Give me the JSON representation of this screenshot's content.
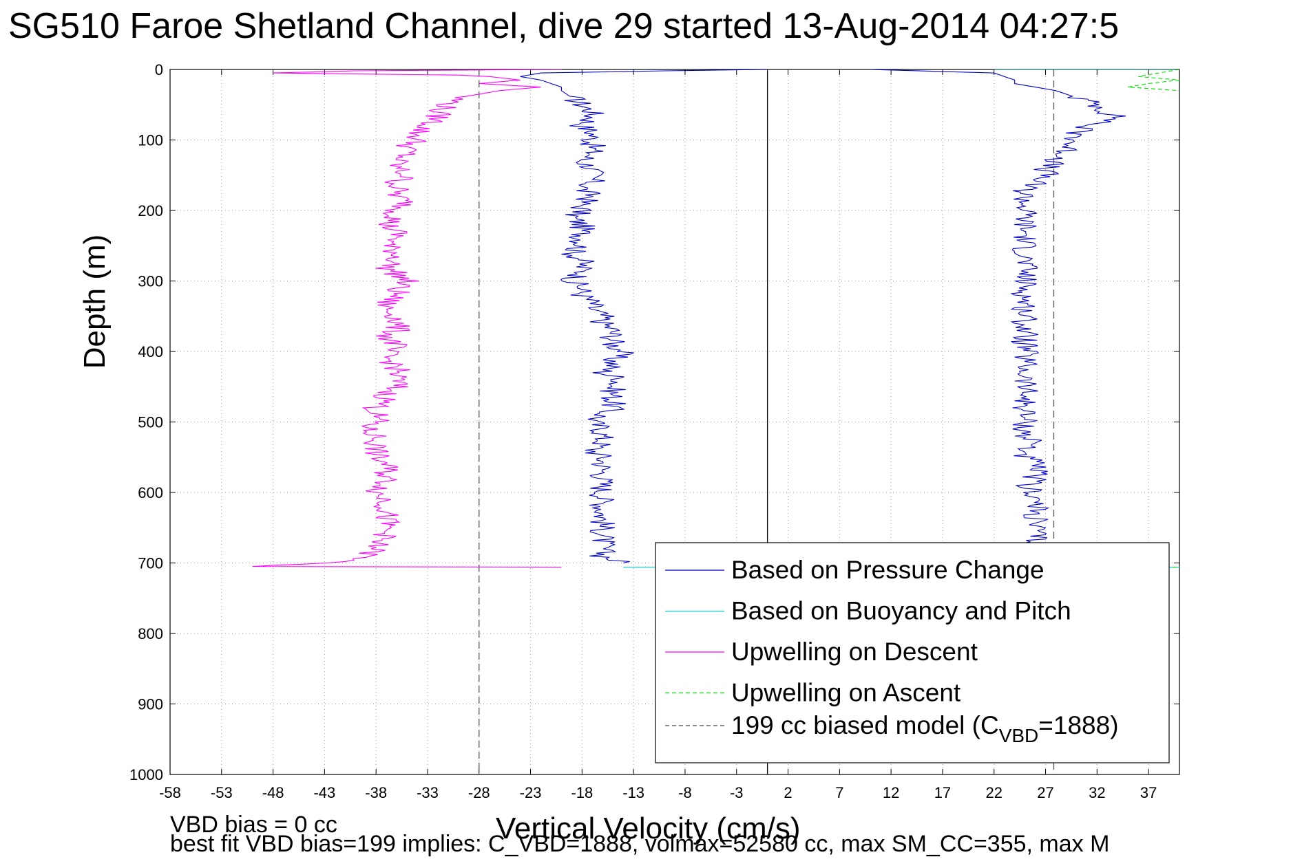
{
  "title": "SG510 Faroe Shetland Channel, dive 29 started 13-Aug-2014 04:27:5",
  "footer": {
    "line1": "VBD bias = 0 cc",
    "line2": "best fit VBD bias=199 implies: C_VBD=1888, volmax=52580 cc, max SM_CC=355, max M"
  },
  "chart_data": {
    "type": "line",
    "title": "SG510 Faroe Shetland Channel, dive 29 started 13-Aug-2014 04:27:5",
    "xlabel": "Vertical Velocity (cm/s)",
    "ylabel": "Depth (m)",
    "xlim": [
      -58,
      40
    ],
    "ylim": [
      0,
      1000
    ],
    "y_reversed": true,
    "grid": true,
    "x_ticks": [
      "-58",
      "-53",
      "-48",
      "-43",
      "-38",
      "-33",
      "-28",
      "-23",
      "-18",
      "-13",
      "-8",
      "-3",
      "2",
      "7",
      "12",
      "17",
      "22",
      "27",
      "32",
      "37"
    ],
    "y_ticks": [
      "0",
      "100",
      "200",
      "300",
      "400",
      "500",
      "600",
      "700",
      "800",
      "900",
      "1000"
    ],
    "legend_position": "bottom-right",
    "reference_lines": [
      {
        "x": 0,
        "style": "solid",
        "color": "#000000"
      },
      {
        "x": -28,
        "style": "dashed",
        "color": "#555555"
      },
      {
        "x": 27.8,
        "style": "dashed",
        "color": "#555555"
      }
    ],
    "series": [
      {
        "name": "Based on Pressure Change",
        "color": "#0000cc",
        "style": "solid",
        "segments": [
          {
            "depth": [
              0,
              2,
              5,
              10,
              15,
              20,
              25,
              30,
              40,
              50,
              60,
              70,
              80,
              90,
              100,
              110,
              120,
              130,
              140,
              150,
              160,
              170,
              180,
              190,
              200,
              210,
              220,
              230,
              240,
              250,
              260,
              270,
              280,
              290,
              300,
              310,
              320,
              330,
              340,
              350,
              360,
              370,
              380,
              390,
              400,
              410,
              420,
              430,
              440,
              450,
              460,
              470,
              480,
              490,
              500,
              510,
              520,
              530,
              540,
              550,
              560,
              570,
              580,
              590,
              600,
              610,
              620,
              630,
              640,
              650,
              660,
              670,
              680,
              690,
              700
            ],
            "velocity": [
              0,
              -10,
              -22,
              -24,
              -22,
              -21,
              -20,
              -20,
              -19,
              -18,
              -17,
              -17,
              -18,
              -17,
              -17,
              -17,
              -17,
              -18,
              -17,
              -17,
              -17,
              -18,
              -17,
              -18,
              -18,
              -19,
              -18,
              -18,
              -18,
              -18,
              -19,
              -18,
              -18,
              -18,
              -19,
              -18,
              -18,
              -17,
              -17,
              -16,
              -16,
              -15,
              -15,
              -15,
              -14,
              -15,
              -15,
              -16,
              -14,
              -15,
              -15,
              -15,
              -15,
              -16,
              -17,
              -16,
              -16,
              -16,
              -17,
              -16,
              -16,
              -16,
              -16,
              -16,
              -16,
              -16,
              -16,
              -16,
              -16,
              -16,
              -16,
              -16,
              -16,
              -16,
              -14
            ]
          },
          {
            "depth": [
              0,
              5,
              10,
              15,
              20,
              25,
              30,
              40,
              50,
              60,
              70,
              80,
              90,
              100,
              110,
              120,
              130,
              140,
              150,
              160,
              170,
              180,
              190,
              200,
              210,
              220,
              230,
              240,
              250,
              260,
              270,
              280,
              290,
              300,
              310,
              320,
              330,
              340,
              350,
              360,
              370,
              380,
              390,
              400,
              410,
              420,
              430,
              440,
              450,
              460,
              470,
              480,
              490,
              500,
              510,
              520,
              530,
              540,
              550,
              560,
              570,
              580,
              590,
              600,
              610,
              620,
              630,
              640,
              650,
              660,
              670,
              680
            ],
            "velocity": [
              10,
              22,
              23,
              24,
              24,
              26,
              28,
              30,
              32,
              33,
              34,
              31,
              30,
              30,
              29,
              29,
              28,
              27,
              27,
              26,
              25,
              25,
              25,
              25,
              25,
              25,
              25,
              25,
              25,
              25,
              25,
              25,
              25,
              25,
              25,
              25,
              25,
              25,
              25,
              25,
              25,
              25,
              25,
              25,
              25,
              25,
              25,
              25,
              25,
              25,
              25,
              25,
              25,
              25,
              25,
              25,
              26,
              25,
              25,
              26,
              26,
              26,
              25,
              26,
              26,
              26,
              26,
              26,
              26,
              26,
              26,
              26
            ]
          }
        ]
      },
      {
        "name": "Based on Buoyancy and Pitch",
        "color": "#00cccc",
        "style": "solid",
        "segments": [
          {
            "depth": [
              0,
              0
            ],
            "velocity": [
              22,
              40
            ]
          },
          {
            "depth": [
              706,
              706
            ],
            "velocity": [
              -14,
              40
            ]
          }
        ]
      },
      {
        "name": "Upwelling on Descent",
        "color": "#ff00ff",
        "style": "solid",
        "segments": [
          {
            "depth": [
              0,
              2,
              5,
              8,
              10,
              15,
              20,
              25,
              30,
              35,
              40,
              50,
              60,
              70,
              80,
              90,
              100,
              110,
              120,
              130,
              140,
              150,
              160,
              170,
              180,
              190,
              200,
              210,
              220,
              230,
              240,
              250,
              260,
              270,
              280,
              290,
              300,
              310,
              320,
              330,
              340,
              350,
              360,
              370,
              380,
              390,
              400,
              410,
              420,
              430,
              440,
              450,
              460,
              470,
              480,
              490,
              500,
              510,
              520,
              530,
              540,
              550,
              560,
              570,
              580,
              590,
              600,
              610,
              620,
              630,
              640,
              650,
              660,
              670,
              680,
              690,
              700,
              705,
              706
            ],
            "velocity": [
              -20,
              -40,
              -48,
              -30,
              -27,
              -24,
              -28,
              -22,
              -26,
              -28,
              -30,
              -31,
              -32,
              -32,
              -33,
              -34,
              -34,
              -35,
              -35,
              -36,
              -36,
              -35,
              -36,
              -36,
              -36,
              -35,
              -36,
              -36,
              -37,
              -36,
              -36,
              -37,
              -36,
              -36,
              -37,
              -36,
              -35,
              -36,
              -36,
              -37,
              -37,
              -36,
              -36,
              -36,
              -37,
              -36,
              -37,
              -37,
              -36,
              -36,
              -36,
              -36,
              -37,
              -37,
              -38,
              -38,
              -38,
              -39,
              -38,
              -38,
              -38,
              -38,
              -37,
              -37,
              -37,
              -37,
              -38,
              -37,
              -37,
              -37,
              -37,
              -37,
              -37,
              -38,
              -38,
              -39,
              -42,
              -50,
              -20
            ]
          }
        ]
      },
      {
        "name": "Upwelling on Ascent",
        "color": "#00dd00",
        "style": "dashed",
        "segments": [
          {
            "depth": [
              0,
              5,
              10,
              15,
              20,
              25,
              30
            ],
            "velocity": [
              40,
              38,
              36,
              40,
              37,
              35,
              40
            ]
          },
          {
            "depth": [
              706,
              706
            ],
            "velocity": [
              38,
              40
            ]
          }
        ]
      },
      {
        "name": "199 cc biased model (C_VBD=1888)",
        "legend_label": "199 cc biased model (C",
        "legend_subscript": "VBD",
        "legend_suffix": "=1888)",
        "color": "#444444",
        "style": "dashed"
      }
    ]
  }
}
